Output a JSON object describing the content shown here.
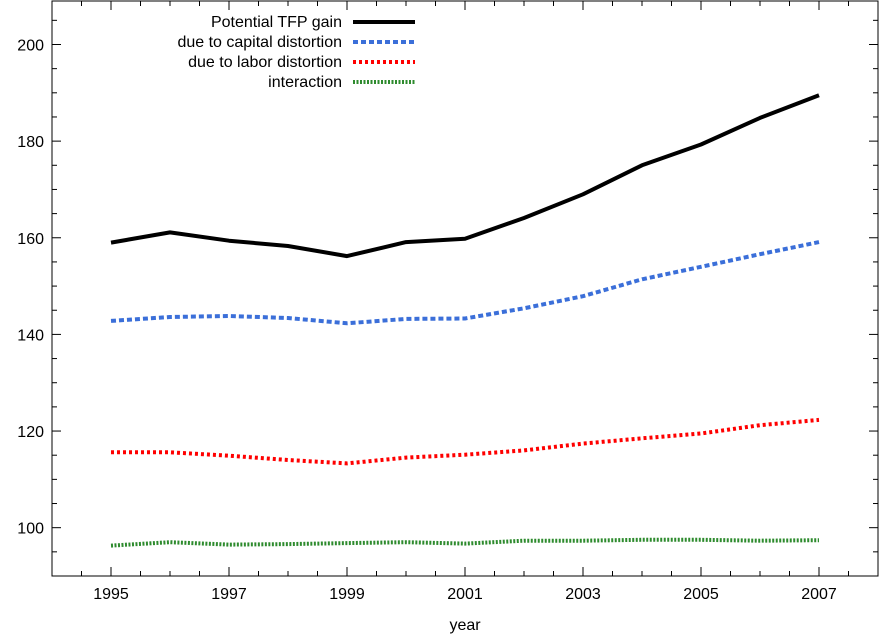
{
  "chart_data": {
    "type": "line",
    "title": "",
    "xlabel": "year",
    "ylabel": "",
    "xlim": [
      1994,
      2008
    ],
    "ylim": [
      90,
      209
    ],
    "x_ticks": [
      "1995",
      "1997",
      "1999",
      "2001",
      "2003",
      "2005",
      "2007"
    ],
    "y_ticks": [
      "100",
      "120",
      "140",
      "160",
      "180",
      "200"
    ],
    "legend_position": "top-left",
    "grid": false,
    "x": [
      1995,
      1996,
      1997,
      1998,
      1999,
      2000,
      2001,
      2002,
      2003,
      2004,
      2005,
      2006,
      2007
    ],
    "series": [
      {
        "name": "Potential TFP gain",
        "color": "#000000",
        "style": "solid",
        "values": [
          159.0,
          161.1,
          159.4,
          158.3,
          156.2,
          159.1,
          159.8,
          164.1,
          169.0,
          175.0,
          179.3,
          184.8,
          189.5
        ]
      },
      {
        "name": "due to capital distortion",
        "color": "#3b6fd9",
        "style": "dashed",
        "values": [
          142.8,
          143.6,
          143.8,
          143.4,
          142.3,
          143.2,
          143.3,
          145.4,
          147.9,
          151.4,
          154.0,
          156.6,
          159.1
        ]
      },
      {
        "name": "due to labor distortion",
        "color": "#ff0000",
        "style": "dotted",
        "values": [
          115.6,
          115.6,
          114.9,
          114.0,
          113.3,
          114.5,
          115.1,
          116.0,
          117.4,
          118.5,
          119.5,
          121.2,
          122.3
        ]
      },
      {
        "name": "interaction",
        "color": "#2e8b2e",
        "style": "dense-dotted",
        "values": [
          96.3,
          97.0,
          96.5,
          96.6,
          96.8,
          97.0,
          96.7,
          97.3,
          97.3,
          97.5,
          97.5,
          97.3,
          97.4
        ]
      }
    ]
  }
}
